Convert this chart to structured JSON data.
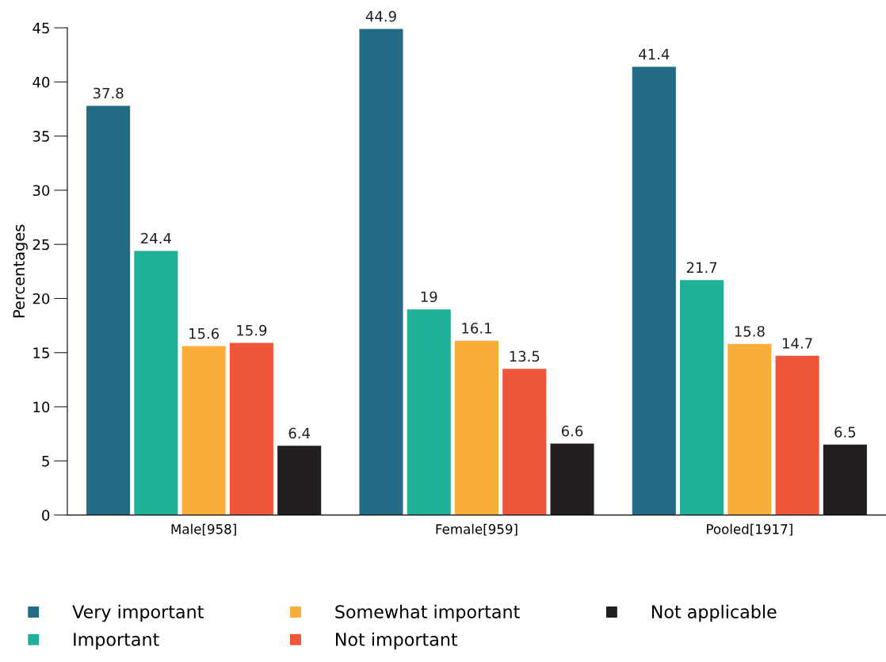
{
  "chart_data": {
    "type": "bar",
    "ylabel": "Percentages",
    "categories": [
      "Male[958]",
      "Female[959]",
      "Pooled[1917]"
    ],
    "series": [
      {
        "name": "Very important",
        "color": "#226b84",
        "values": [
          37.8,
          44.9,
          41.4
        ]
      },
      {
        "name": "Important",
        "color": "#20b098",
        "values": [
          24.4,
          19,
          21.7
        ]
      },
      {
        "name": "Somewhat important",
        "color": "#f9ae3a",
        "values": [
          15.6,
          16.1,
          15.8
        ]
      },
      {
        "name": "Not important",
        "color": "#ef5539",
        "values": [
          15.9,
          13.5,
          14.7
        ]
      },
      {
        "name": "Not applicable",
        "color": "#231f20",
        "values": [
          6.4,
          6.6,
          6.5
        ]
      }
    ],
    "ylim": [
      0,
      45
    ],
    "yticks": [
      0,
      5,
      10,
      15,
      20,
      25,
      30,
      35,
      40,
      45
    ],
    "data_labels": true,
    "grid": false,
    "legend": "bottom"
  }
}
